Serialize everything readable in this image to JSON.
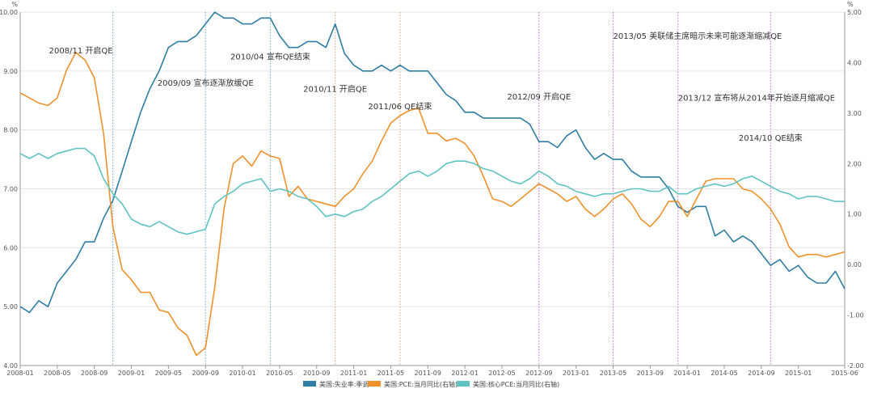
{
  "chart_data": {
    "type": "line",
    "x_start": "2008-01",
    "x_end": "2015-06",
    "x_tick_labels": [
      "2008-01",
      "2008-05",
      "2008-09",
      "2009-01",
      "2009-05",
      "2009-09",
      "2010-01",
      "2010-05",
      "2010-09",
      "2011-01",
      "2011-05",
      "2011-09",
      "2012-01",
      "2012-05",
      "2012-09",
      "2013-01",
      "2013-05",
      "2013-09",
      "2014-01",
      "2014-05",
      "2014-09",
      "2015-01",
      "2015-06"
    ],
    "y_left": {
      "unit": "%",
      "min": 4.0,
      "max": 10.0,
      "ticks": [
        "4.00",
        "5.00",
        "6.00",
        "7.00",
        "8.00",
        "9.00",
        "10.00"
      ]
    },
    "y_right": {
      "unit": "%",
      "min": -2.0,
      "max": 5.0,
      "ticks": [
        "-2.00",
        "-1.00",
        "0.00",
        "1.00",
        "2.00",
        "3.00",
        "4.00",
        "5.00"
      ]
    },
    "grid": true,
    "legend_position": "bottom-center",
    "series": [
      {
        "name": "美国:失业率:季调",
        "axis": "left",
        "color": "#2e7ea5",
        "start": "2008-01",
        "values": [
          5.0,
          4.9,
          5.1,
          5.0,
          5.4,
          5.6,
          5.8,
          6.1,
          6.1,
          6.5,
          6.8,
          7.3,
          7.8,
          8.3,
          8.7,
          9.0,
          9.4,
          9.5,
          9.5,
          9.6,
          9.8,
          10.0,
          9.9,
          9.9,
          9.8,
          9.8,
          9.9,
          9.9,
          9.6,
          9.4,
          9.4,
          9.5,
          9.5,
          9.4,
          9.8,
          9.3,
          9.1,
          9.0,
          9.0,
          9.1,
          9.0,
          9.1,
          9.0,
          9.0,
          9.0,
          8.8,
          8.6,
          8.5,
          8.3,
          8.3,
          8.2,
          8.2,
          8.2,
          8.2,
          8.2,
          8.1,
          7.8,
          7.8,
          7.7,
          7.9,
          8.0,
          7.7,
          7.5,
          7.6,
          7.5,
          7.5,
          7.3,
          7.2,
          7.2,
          7.2,
          7.0,
          6.7,
          6.6,
          6.7,
          6.7,
          6.2,
          6.3,
          6.1,
          6.2,
          6.1,
          5.9,
          5.7,
          5.8,
          5.6,
          5.7,
          5.5,
          5.4,
          5.4,
          5.6,
          5.3
        ]
      },
      {
        "name": "美国:PCE:当月同比(右轴)",
        "axis": "right",
        "color": "#f0912a",
        "start": "2008-01",
        "values": [
          3.4,
          3.3,
          3.2,
          3.15,
          3.3,
          3.85,
          4.2,
          4.05,
          3.7,
          2.6,
          0.75,
          -0.1,
          -0.3,
          -0.55,
          -0.55,
          -0.9,
          -0.95,
          -1.25,
          -1.4,
          -1.8,
          -1.65,
          -0.45,
          1.1,
          2.0,
          2.15,
          1.95,
          2.25,
          2.15,
          2.1,
          1.35,
          1.55,
          1.3,
          1.25,
          1.2,
          1.15,
          1.35,
          1.5,
          1.8,
          2.05,
          2.45,
          2.8,
          2.95,
          3.05,
          3.1,
          2.6,
          2.6,
          2.45,
          2.5,
          2.4,
          2.15,
          1.75,
          1.3,
          1.25,
          1.15,
          1.3,
          1.45,
          1.6,
          1.5,
          1.4,
          1.25,
          1.35,
          1.1,
          0.95,
          1.1,
          1.3,
          1.4,
          1.2,
          0.9,
          0.75,
          0.95,
          1.25,
          1.25,
          0.95,
          1.3,
          1.65,
          1.7,
          1.7,
          1.7,
          1.5,
          1.45,
          1.3,
          1.1,
          0.8,
          0.35,
          0.15,
          0.2,
          0.2,
          0.15,
          0.2,
          0.25
        ]
      },
      {
        "name": "美国:核心PCE:当月同比(右轴)",
        "axis": "right",
        "color": "#5ec4c2",
        "start": "2008-01",
        "values": [
          2.2,
          2.1,
          2.2,
          2.1,
          2.2,
          2.25,
          2.3,
          2.3,
          2.15,
          1.7,
          1.4,
          1.2,
          0.9,
          0.8,
          0.75,
          0.85,
          0.75,
          0.65,
          0.6,
          0.65,
          0.7,
          1.2,
          1.35,
          1.45,
          1.6,
          1.65,
          1.7,
          1.45,
          1.5,
          1.45,
          1.35,
          1.3,
          1.15,
          0.95,
          1.0,
          0.95,
          1.05,
          1.1,
          1.25,
          1.35,
          1.5,
          1.65,
          1.8,
          1.85,
          1.75,
          1.85,
          2.0,
          2.05,
          2.05,
          2.0,
          1.9,
          1.85,
          1.75,
          1.65,
          1.6,
          1.7,
          1.85,
          1.75,
          1.6,
          1.55,
          1.45,
          1.4,
          1.35,
          1.4,
          1.4,
          1.45,
          1.5,
          1.5,
          1.45,
          1.45,
          1.55,
          1.4,
          1.4,
          1.5,
          1.55,
          1.6,
          1.55,
          1.6,
          1.7,
          1.75,
          1.65,
          1.55,
          1.45,
          1.4,
          1.3,
          1.35,
          1.35,
          1.3,
          1.25,
          1.25
        ]
      }
    ],
    "events": [
      {
        "date": "2008-11",
        "label": "2008/11 开启QE",
        "color": "#6aa8d8",
        "label_y": 9.3,
        "label_anchor": "end"
      },
      {
        "date": "2009-09",
        "label": "2009/09 宣布逐渐放缓QE",
        "color": "#6aa8d8",
        "label_y": 8.75,
        "label_anchor": "middle"
      },
      {
        "date": "2010-04",
        "label": "2010/04 宣布QE结束",
        "color": "#6aa8d8",
        "label_y": 9.2,
        "label_anchor": "middle"
      },
      {
        "date": "2010-11",
        "label": "2010/11 开启QE",
        "color": "#d8a06a",
        "label_y": 8.65,
        "label_anchor": "middle"
      },
      {
        "date": "2011-06",
        "label": "2011/06 QE结束",
        "color": "#d8a06a",
        "label_y": 8.35,
        "label_anchor": "middle"
      },
      {
        "date": "2012-09",
        "label": "2012/09 开启QE",
        "color": "#c46ad8",
        "label_y": 8.52,
        "label_anchor": "middle"
      },
      {
        "date": "2013-05",
        "label": "2013/05 美联储主席暗示未来可能逐渐缩减QE",
        "color": "#c46ad8",
        "label_y": 9.55,
        "label_anchor": "start"
      },
      {
        "date": "2013-12",
        "label": "2013/12 宣布将从2014年开始逐月缩减QE",
        "color": "#c46ad8",
        "label_y": 8.5,
        "label_anchor": "start"
      },
      {
        "date": "2014-10",
        "label": "2014/10 QE结束",
        "color": "#c46ad8",
        "label_y": 7.82,
        "label_anchor": "middle"
      }
    ]
  }
}
